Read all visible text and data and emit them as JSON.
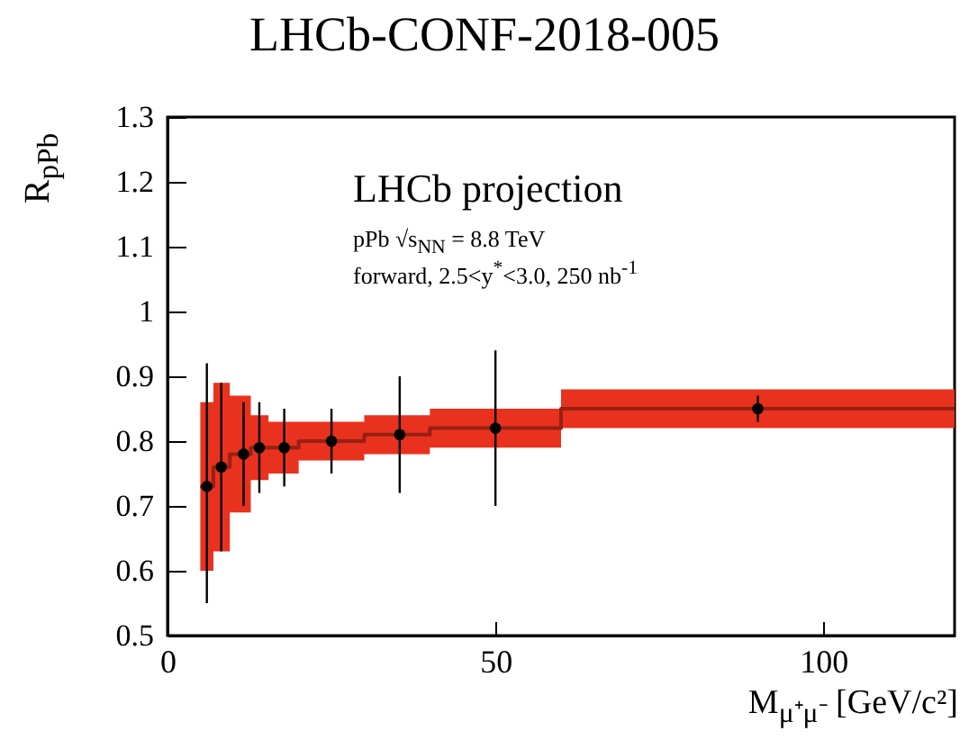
{
  "chart_data": {
    "type": "scatter",
    "title": "LHCb-CONF-2018-005",
    "xlabel": "M$_{μ⁺μ⁻}$ [GeV/c²]",
    "ylabel": "R$_{pPb}$",
    "annotations": [
      "LHCb projection",
      "pPb √s$_{NN}$ = 8.8 TeV",
      "forward, 2.5<y$^{*}$<3.0, 250 nb$^{-1}$"
    ],
    "xlim": [
      0,
      120
    ],
    "xticks": [
      0,
      50,
      100
    ],
    "ylim": [
      0.5,
      1.3
    ],
    "yticks": [
      0.5,
      0.6,
      0.7,
      0.8,
      0.9,
      1,
      1.1,
      1.2,
      1.3
    ],
    "series": [
      {
        "type": "step",
        "color": "#e8321e",
        "x": [
          5,
          7,
          9.5,
          12.7,
          15.4,
          20,
          30,
          40,
          60,
          120
        ],
        "values": [
          0.73,
          0.76,
          0.78,
          0.79,
          0.79,
          0.8,
          0.81,
          0.82,
          0.85,
          0.85
        ],
        "lower": [
          0.6,
          0.63,
          0.69,
          0.74,
          0.75,
          0.77,
          0.78,
          0.79,
          0.82,
          0.82
        ],
        "upper": [
          0.86,
          0.89,
          0.87,
          0.84,
          0.83,
          0.83,
          0.84,
          0.85,
          0.88,
          0.88
        ]
      },
      {
        "color": "#000000",
        "marker": "circle",
        "x": [
          6,
          8.2,
          11.6,
          14,
          17.8,
          25,
          35.4,
          50,
          90
        ],
        "values": [
          0.73,
          0.76,
          0.78,
          0.79,
          0.79,
          0.8,
          0.81,
          0.82,
          0.85
        ],
        "errors": [
          [
            0.55,
            0.92
          ],
          [
            0.63,
            0.89
          ],
          [
            0.7,
            0.86
          ],
          [
            0.72,
            0.86
          ],
          [
            0.73,
            0.85
          ],
          [
            0.75,
            0.85
          ],
          [
            0.72,
            0.9
          ],
          [
            0.7,
            0.94
          ],
          [
            0.83,
            0.87
          ]
        ]
      }
    ]
  }
}
